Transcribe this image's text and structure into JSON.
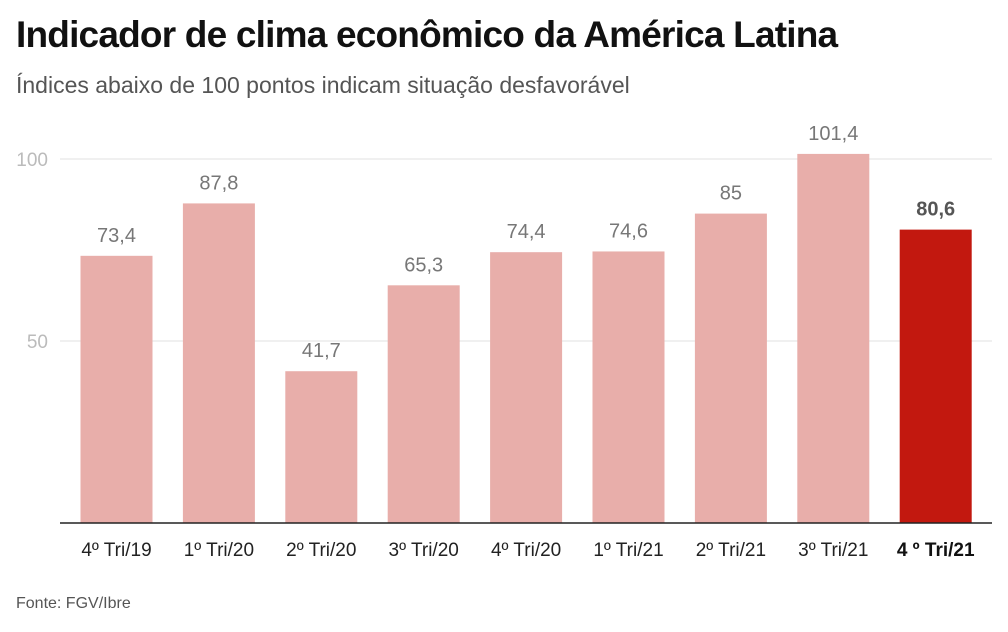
{
  "title": "Indicador de clima econômico da América Latina",
  "subtitle": "Índices abaixo de 100 pontos indicam situação desfavorável",
  "source": "Fonte: FGV/Ibre",
  "colors": {
    "bar": "#e8aeaa",
    "highlight": "#c2180f",
    "grid": "#e2e2e2",
    "axis": "#222222"
  },
  "chart_data": {
    "type": "bar",
    "title": "Indicador de clima econômico da América Latina",
    "subtitle": "Índices abaixo de 100 pontos indicam situação desfavorável",
    "xlabel": "",
    "ylabel": "",
    "ylim": [
      0,
      100
    ],
    "yticks": [
      50,
      100
    ],
    "grid": true,
    "categories": [
      "4º Tri/19",
      "1º Tri/20",
      "2º Tri/20",
      "3º Tri/20",
      "4º Tri/20",
      "1º Tri/21",
      "2º Tri/21",
      "3º Tri/21",
      "4 º Tri/21"
    ],
    "values": [
      73.4,
      87.8,
      41.7,
      65.3,
      74.4,
      74.6,
      85,
      101.4,
      80.6
    ],
    "value_labels": [
      "73,4",
      "87,8",
      "41,7",
      "65,3",
      "74,4",
      "74,6",
      "85",
      "101,4",
      "80,6"
    ],
    "highlight_index": 8
  }
}
